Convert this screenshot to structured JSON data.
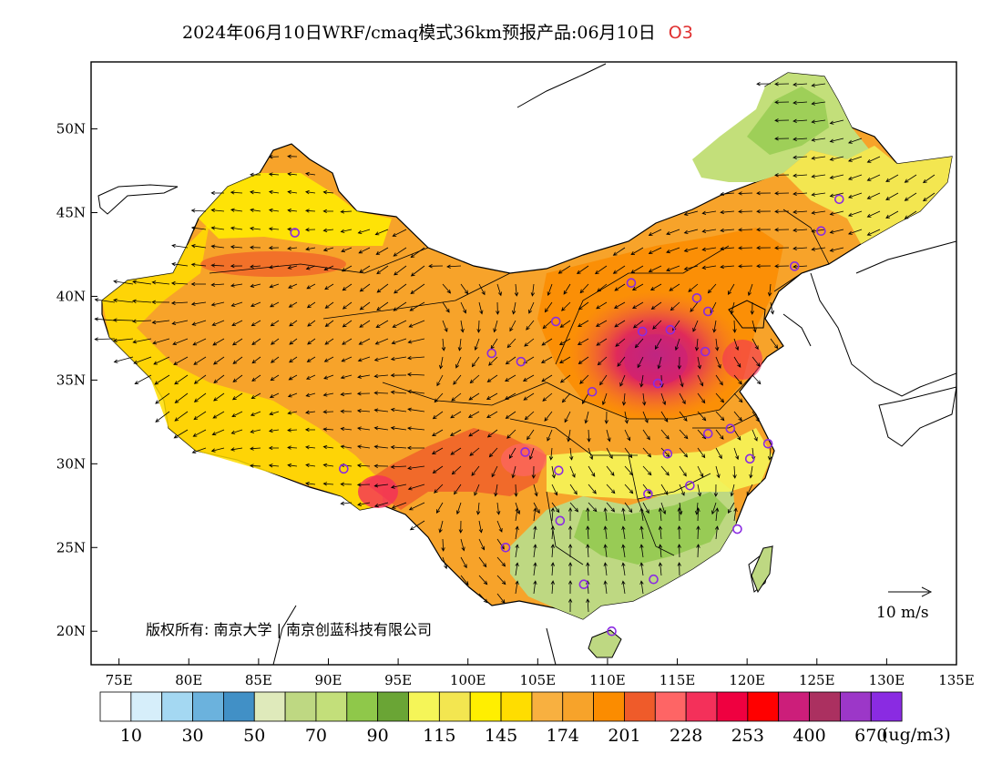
{
  "title": {
    "main": "2024年06月10日WRF/cmaq模式36km预报产品:06月10日",
    "variable": "O3",
    "variable_color": "#e03030"
  },
  "axes": {
    "lon_range": [
      73,
      135
    ],
    "lat_range": [
      18,
      54
    ],
    "x_ticks": [
      "75E",
      "80E",
      "85E",
      "90E",
      "95E",
      "100E",
      "105E",
      "110E",
      "115E",
      "120E",
      "125E",
      "130E",
      "135E"
    ],
    "y_ticks": [
      "20N",
      "25N",
      "30N",
      "35N",
      "40N",
      "45N",
      "50N"
    ]
  },
  "vector_reference": {
    "label": "10 m/s"
  },
  "copyright": "版权所有: 南京大学 | 南京创蓝科技有限公司",
  "legend": {
    "unit": "(ug/m3)",
    "colors": [
      "#ffffff",
      "#d6eefa",
      "#a4d8f2",
      "#6bb2dd",
      "#4190c6",
      "#dfeabb",
      "#bed882",
      "#c3df7a",
      "#8fc84a",
      "#6aa535",
      "#f5f558",
      "#f3e650",
      "#ffef00",
      "#ffdd00",
      "#f8b040",
      "#f7a32a",
      "#fb8c00",
      "#ef5b2a",
      "#fe6565",
      "#f4305a",
      "#ef0040",
      "#ff0000",
      "#cc1e7a",
      "#ab3060",
      "#9c37c8",
      "#8a2be2"
    ],
    "labels": [
      "10",
      "30",
      "50",
      "70",
      "90",
      "115",
      "145",
      "174",
      "201",
      "228",
      "253",
      "400",
      "670"
    ]
  },
  "stations": [
    [
      87.6,
      43.8
    ],
    [
      91.1,
      29.7
    ],
    [
      101.7,
      36.6
    ],
    [
      103.8,
      36.1
    ],
    [
      104.1,
      30.7
    ],
    [
      102.7,
      25.0
    ],
    [
      106.6,
      26.6
    ],
    [
      106.5,
      29.6
    ],
    [
      106.3,
      38.5
    ],
    [
      108.9,
      34.3
    ],
    [
      108.3,
      22.8
    ],
    [
      110.3,
      20.0
    ],
    [
      111.7,
      40.8
    ],
    [
      112.5,
      37.9
    ],
    [
      113.6,
      34.8
    ],
    [
      114.5,
      38.0
    ],
    [
      114.3,
      30.6
    ],
    [
      112.9,
      28.2
    ],
    [
      113.3,
      23.1
    ],
    [
      115.9,
      28.7
    ],
    [
      117.2,
      31.8
    ],
    [
      118.8,
      32.1
    ],
    [
      120.2,
      30.3
    ],
    [
      121.5,
      31.2
    ],
    [
      119.3,
      26.1
    ],
    [
      117.0,
      36.7
    ],
    [
      116.4,
      39.9
    ],
    [
      117.2,
      39.1
    ],
    [
      123.4,
      41.8
    ],
    [
      125.3,
      43.9
    ],
    [
      126.6,
      45.8
    ]
  ]
}
